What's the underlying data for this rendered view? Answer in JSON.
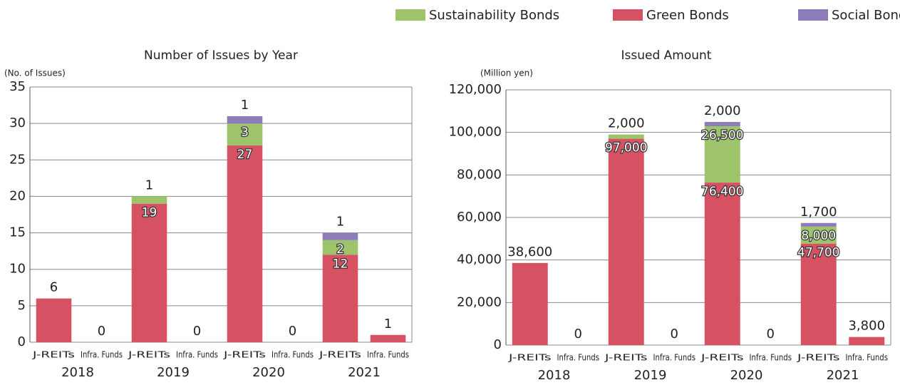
{
  "chart_data": [
    {
      "type": "bar",
      "title": "Number of Issues by Year",
      "y_label": "(No. of Issues)",
      "categories": [
        "J-REITs",
        "Infra. Funds",
        "J-REITs",
        "Infra. Funds",
        "J-REITs",
        "Infra. Funds",
        "J-REITs",
        "Infra. Funds"
      ],
      "groups": [
        "2018",
        "2019",
        "2020",
        "2021"
      ],
      "series": [
        {
          "name": "Green Bonds",
          "color": "#d65263",
          "values": [
            6,
            0,
            19,
            0,
            27,
            0,
            12,
            1
          ]
        },
        {
          "name": "Sustainability Bonds",
          "color": "#9dc36b",
          "values": [
            null,
            null,
            1,
            null,
            3,
            null,
            2,
            null
          ]
        },
        {
          "name": "Social Bonds",
          "color": "#8e7cb8",
          "values": [
            null,
            null,
            null,
            null,
            1,
            null,
            1,
            null
          ]
        }
      ],
      "stacked": true,
      "ylim": [
        0,
        35
      ],
      "yticks": [
        0,
        5,
        10,
        15,
        20,
        25,
        30,
        35
      ],
      "grid": true
    },
    {
      "type": "bar",
      "title": "Issued Amount",
      "y_label": "(Million yen)",
      "categories": [
        "J-REITs",
        "Infra. Funds",
        "J-REITs",
        "Infra. Funds",
        "J-REITs",
        "Infra. Funds",
        "J-REITs",
        "Infra. Funds"
      ],
      "groups": [
        "2018",
        "2019",
        "2020",
        "2021"
      ],
      "series": [
        {
          "name": "Green Bonds",
          "color": "#d65263",
          "values": [
            38600,
            0,
            97000,
            0,
            76400,
            0,
            47700,
            3800
          ],
          "value_labels": [
            "38,600",
            "0",
            "97,000",
            "0",
            "76,400",
            "0",
            "47,700",
            "3,800"
          ]
        },
        {
          "name": "Sustainability Bonds",
          "color": "#9dc36b",
          "values": [
            null,
            null,
            2000,
            null,
            26500,
            null,
            8000,
            null
          ],
          "value_labels": [
            null,
            null,
            "2,000",
            null,
            "26,500",
            null,
            "8,000",
            null
          ]
        },
        {
          "name": "Social Bonds",
          "color": "#8e7cb8",
          "values": [
            null,
            null,
            null,
            null,
            2000,
            null,
            1700,
            null
          ],
          "value_labels": [
            null,
            null,
            null,
            null,
            "2,000",
            null,
            "1,700",
            null
          ]
        }
      ],
      "stacked": true,
      "ylim": [
        0,
        120000
      ],
      "yticks": [
        0,
        {
          "value": 20000,
          "label": "20,000"
        },
        {
          "value": 40000,
          "label": "40,000"
        },
        {
          "value": 60000,
          "label": "60,000"
        },
        {
          "value": 80000,
          "label": "80,000"
        },
        {
          "value": 100000,
          "label": "100,000"
        },
        {
          "value": 120000,
          "label": "120,000"
        }
      ],
      "grid": true
    }
  ]
}
